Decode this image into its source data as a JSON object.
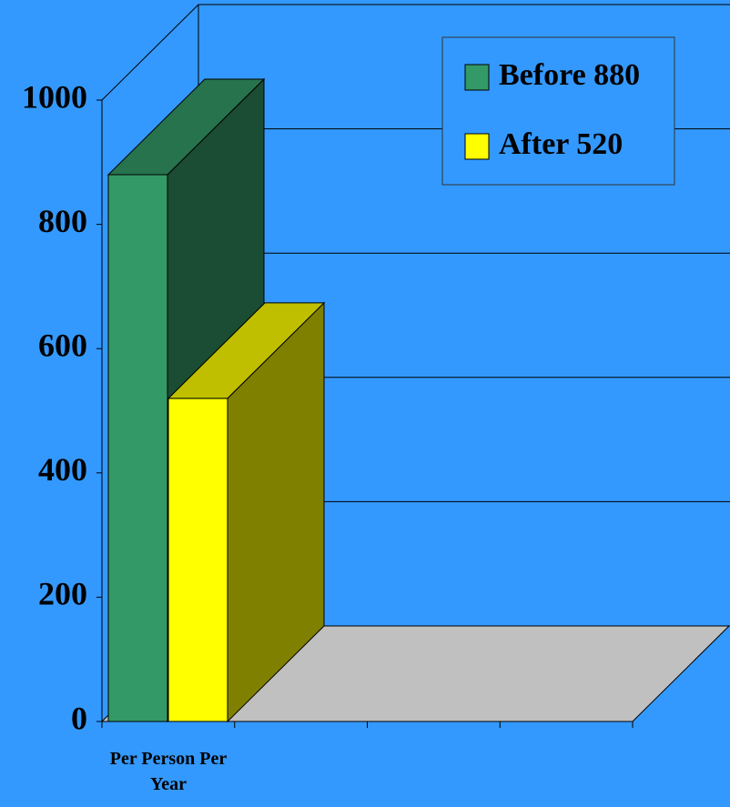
{
  "chart_data": {
    "type": "bar3d",
    "categories": [
      "Per Person Per Year"
    ],
    "series": [
      {
        "name": "Before 880",
        "color": "#339966",
        "values": [
          880
        ]
      },
      {
        "name": "After 520",
        "color": "#ffff00",
        "values": [
          520
        ]
      }
    ],
    "ylim": [
      0,
      1000
    ],
    "yticks": [
      0,
      200,
      400,
      600,
      800,
      1000
    ],
    "grid": true,
    "legend": "top-right"
  }
}
